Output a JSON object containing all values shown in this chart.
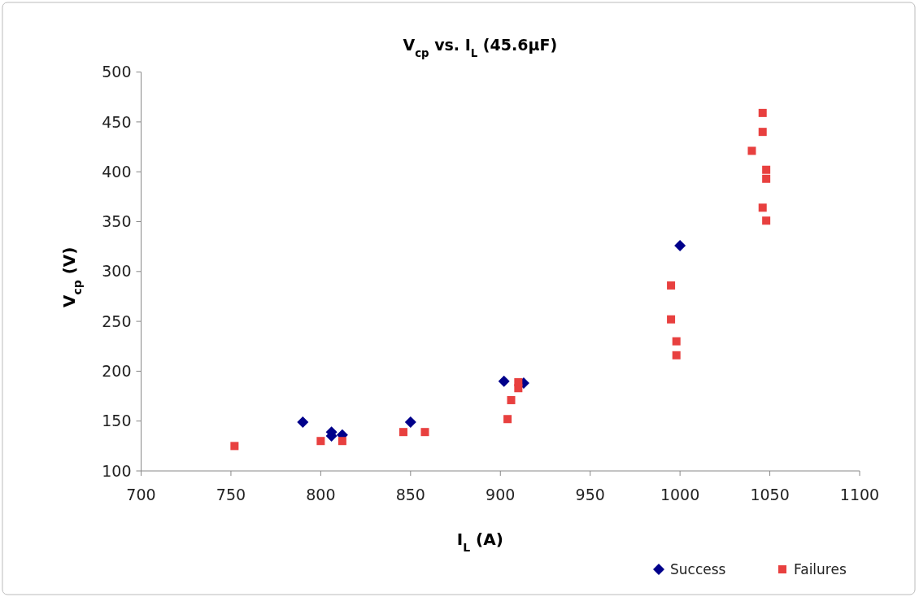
{
  "chart_data": {
    "type": "scatter",
    "title": "V$_{cp}$ vs. I$_{L}$ (45.6μF)",
    "xlabel": "I$_{L}$ (A)",
    "ylabel": "V$_{cp}$ (V)",
    "xlim": [
      700,
      1100
    ],
    "xticks": [
      700,
      750,
      800,
      850,
      900,
      950,
      1000,
      1050,
      1100
    ],
    "ylim": [
      100,
      500
    ],
    "yticks": [
      100,
      150,
      200,
      250,
      300,
      350,
      400,
      450,
      500
    ],
    "grid": false,
    "legend": "bottom right",
    "series": [
      {
        "name": "Success",
        "color": "#00008b",
        "marker": "diamond",
        "x": [
          790,
          806,
          806,
          812,
          850,
          902,
          913,
          1000
        ],
        "values": [
          149,
          139,
          135,
          136,
          149,
          190,
          188,
          326
        ]
      },
      {
        "name": "Failures",
        "color": "#e8403f",
        "marker": "square",
        "x": [
          752,
          800,
          812,
          846,
          858,
          904,
          906,
          910,
          910,
          995,
          995,
          998,
          998,
          1046,
          1046,
          1040,
          1048,
          1048,
          1046,
          1048
        ],
        "values": [
          125,
          130,
          130,
          139,
          139,
          152,
          171,
          183,
          189,
          286,
          252,
          230,
          216,
          459,
          440,
          421,
          402,
          393,
          364,
          351
        ]
      }
    ]
  }
}
